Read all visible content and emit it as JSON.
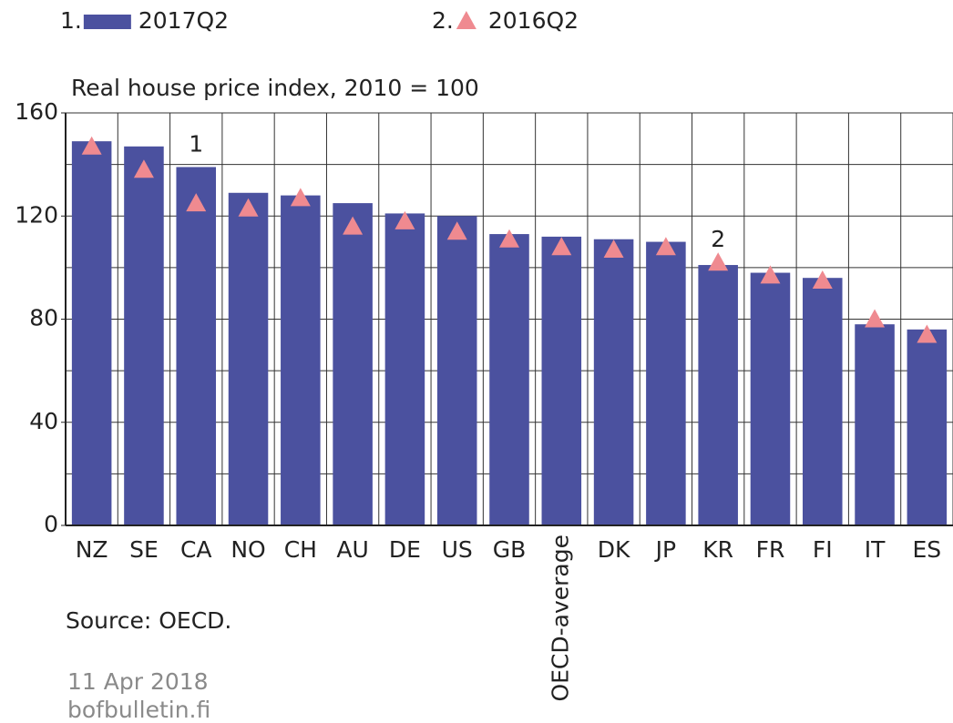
{
  "chart_data": {
    "type": "bar",
    "title": "Real house price index, 2010 = 100",
    "categories": [
      "NZ",
      "SE",
      "CA",
      "NO",
      "CH",
      "AU",
      "DE",
      "US",
      "GB",
      "OECD-average",
      "DK",
      "JP",
      "KR",
      "FR",
      "FI",
      "IT",
      "ES"
    ],
    "rotated_categories": [
      "OECD-average"
    ],
    "series": [
      {
        "number": "1.",
        "name": "2017Q2",
        "color": "#4b519f",
        "marker": "bar",
        "values": [
          149,
          147,
          139,
          129,
          128,
          125,
          121,
          120,
          113,
          112,
          111,
          110,
          101,
          98,
          96,
          78,
          76
        ]
      },
      {
        "number": "2.",
        "name": "2016Q2",
        "color": "#ef8a90",
        "marker": "triangle",
        "values": [
          147,
          138,
          125,
          123,
          127,
          116,
          118,
          114,
          111,
          108,
          107,
          108,
          102,
          97,
          95,
          80,
          74
        ]
      }
    ],
    "annotations": [
      {
        "text": "1",
        "category": "CA"
      },
      {
        "text": "2",
        "category": "KR"
      }
    ],
    "ylim": [
      0,
      160
    ],
    "yticks": [
      0,
      40,
      80,
      120,
      160
    ],
    "ygrid": [
      0,
      20,
      40,
      60,
      80,
      100,
      120,
      140,
      160
    ],
    "grid": true,
    "source": "Source: OECD.",
    "date": "11 Apr 2018",
    "site": "bofbulletin.fi"
  }
}
